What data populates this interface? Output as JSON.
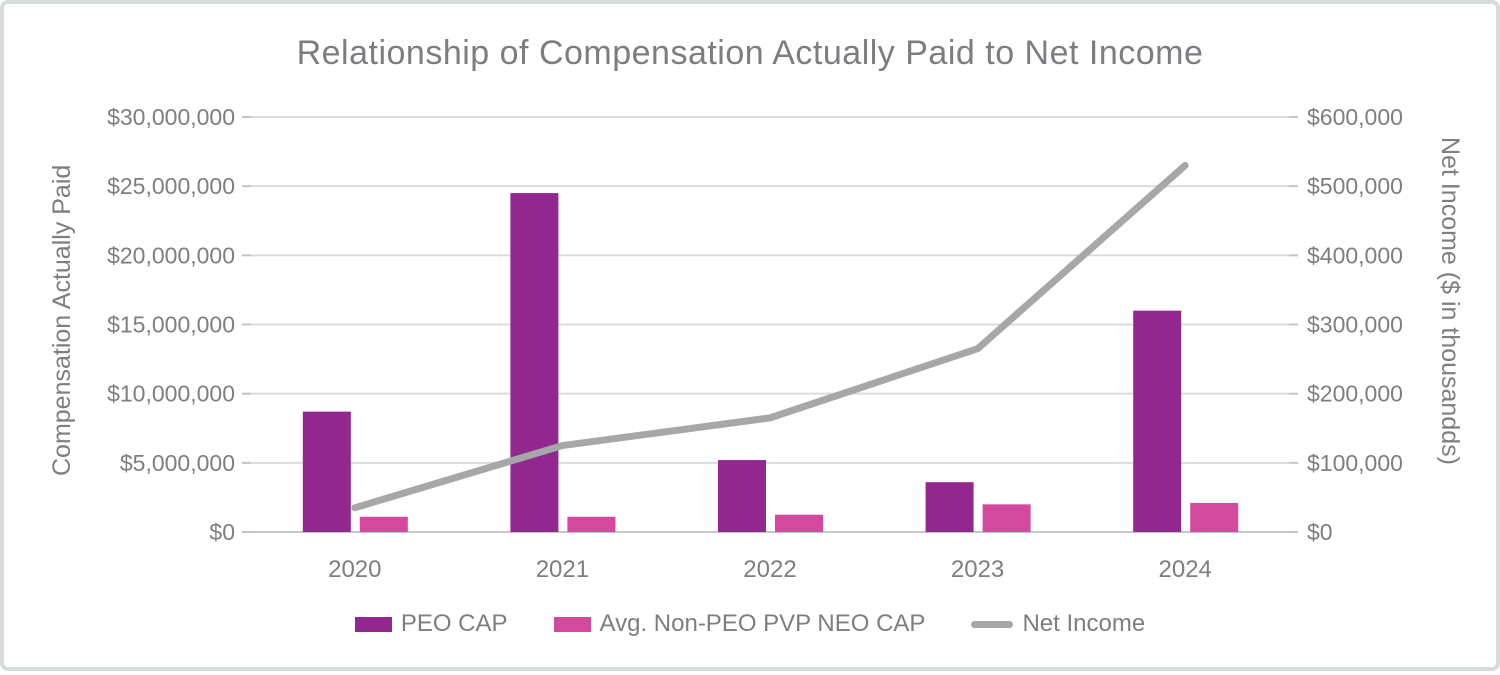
{
  "chart_data": {
    "type": "combo-bar-line",
    "title": "Relationship of Compensation Actually Paid to Net Income",
    "categories": [
      "2020",
      "2021",
      "2022",
      "2023",
      "2024"
    ],
    "series": [
      {
        "name": "PEO CAP",
        "type": "bar",
        "axis": "left",
        "color": "#92278F",
        "values": [
          8700000,
          24500000,
          5200000,
          3600000,
          16000000
        ]
      },
      {
        "name": "Avg. Non-PEO PVP NEO CAP",
        "type": "bar",
        "axis": "left",
        "color": "#D2499E",
        "values": [
          1100000,
          1100000,
          1250000,
          2000000,
          2100000
        ]
      },
      {
        "name": "Net Income",
        "type": "line",
        "axis": "right",
        "color": "#A7A7A7",
        "values": [
          35000,
          125000,
          165000,
          265000,
          530000
        ]
      }
    ],
    "left_axis": {
      "title": "Compensation Actually Paid",
      "min": 0,
      "max": 30000000,
      "step": 5000000,
      "tick_labels": [
        "$0",
        "$5,000,000",
        "$10,000,000",
        "$15,000,000",
        "$20,000,000",
        "$25,000,000",
        "$30,000,000"
      ]
    },
    "right_axis": {
      "title": "Net Income ($ in thousandds)",
      "min": 0,
      "max": 600000,
      "step": 100000,
      "tick_labels": [
        "$0",
        "$100,000",
        "$200,000",
        "$300,000",
        "$400,000",
        "$500,000",
        "$600,000"
      ]
    },
    "grid": true,
    "legend_position": "bottom",
    "colors": {
      "text": "#7C7E80",
      "title_text": "#7B7D80",
      "gridline": "#DBDBDB",
      "baseline": "#C6C6C6",
      "tick": "#C4C4C4",
      "frame_border": "#D8DBDB",
      "background": "#FFFFFF"
    }
  }
}
